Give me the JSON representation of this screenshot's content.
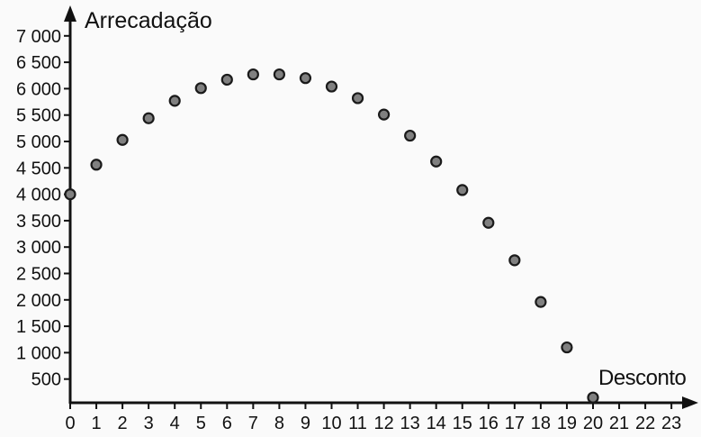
{
  "chart_data": {
    "type": "scatter",
    "title": "",
    "xlabel": "Desconto",
    "ylabel": "Arrecadação",
    "xlim": [
      0,
      23
    ],
    "ylim": [
      0,
      7000
    ],
    "x_ticks": [
      "0",
      "1",
      "2",
      "3",
      "4",
      "5",
      "6",
      "7",
      "8",
      "9",
      "10",
      "11",
      "12",
      "13",
      "14",
      "15",
      "16",
      "17",
      "18",
      "19",
      "20",
      "21",
      "22",
      "23"
    ],
    "y_ticks": [
      "500",
      "1 000",
      "1 500",
      "2 000",
      "2 500",
      "3 000",
      "3 500",
      "4 000",
      "4 500",
      "5 000",
      "5 500",
      "6 000",
      "6 500",
      "7 000"
    ],
    "y_tick_values": [
      500,
      1000,
      1500,
      2000,
      2500,
      3000,
      3500,
      4000,
      4500,
      5000,
      5500,
      6000,
      6500,
      7000
    ],
    "grid": false,
    "marker_color": "#808080",
    "marker_edge_color": "#1a1a1a",
    "x": [
      0,
      1,
      2,
      3,
      4,
      5,
      6,
      7,
      8,
      9,
      10,
      11,
      12,
      13,
      14,
      15,
      16,
      17,
      18,
      19,
      20
    ],
    "y": [
      4000,
      4560,
      5030,
      5440,
      5770,
      6010,
      6170,
      6270,
      6270,
      6200,
      6040,
      5820,
      5510,
      5110,
      4620,
      4080,
      3460,
      2750,
      1960,
      1100,
      150
    ]
  }
}
